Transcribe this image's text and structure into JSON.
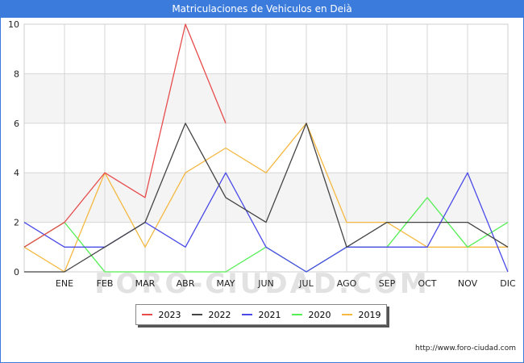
{
  "header": {
    "title": "Matriculaciones de Vehiculos en Deià"
  },
  "footer": {
    "url": "http://www.foro-ciudad.com"
  },
  "watermark": "FORO-CIUDAD.COM",
  "chart_data": {
    "type": "line",
    "title": "Matriculaciones de Vehiculos en Deià",
    "categories": [
      "",
      "ENE",
      "FEB",
      "MAR",
      "ABR",
      "MAY",
      "JUN",
      "JUL",
      "AGO",
      "SEP",
      "OCT",
      "NOV",
      "DIC"
    ],
    "ylim": [
      0,
      10
    ],
    "yticks": [
      0,
      2,
      4,
      6,
      8,
      10
    ],
    "grid": true,
    "legend_position": "bottom",
    "series": [
      {
        "name": "2023",
        "color": "#e74c4c",
        "values": [
          1,
          2,
          4,
          3,
          10,
          6,
          null,
          null,
          null,
          null,
          null,
          null,
          null
        ]
      },
      {
        "name": "2022",
        "color": "#444444",
        "values": [
          0,
          0,
          1,
          2,
          6,
          3,
          2,
          6,
          1,
          2,
          2,
          2,
          1
        ]
      },
      {
        "name": "2021",
        "color": "#4a4ae8",
        "values": [
          2,
          1,
          1,
          2,
          1,
          4,
          1,
          0,
          1,
          1,
          1,
          4,
          0
        ]
      },
      {
        "name": "2020",
        "color": "#55ee55",
        "values": [
          1,
          2,
          0,
          0,
          0,
          0,
          1,
          0,
          1,
          1,
          3,
          1,
          2
        ]
      },
      {
        "name": "2019",
        "color": "#f5b841",
        "values": [
          1,
          0,
          4,
          1,
          4,
          5,
          4,
          6,
          2,
          2,
          1,
          1,
          1
        ]
      }
    ]
  }
}
